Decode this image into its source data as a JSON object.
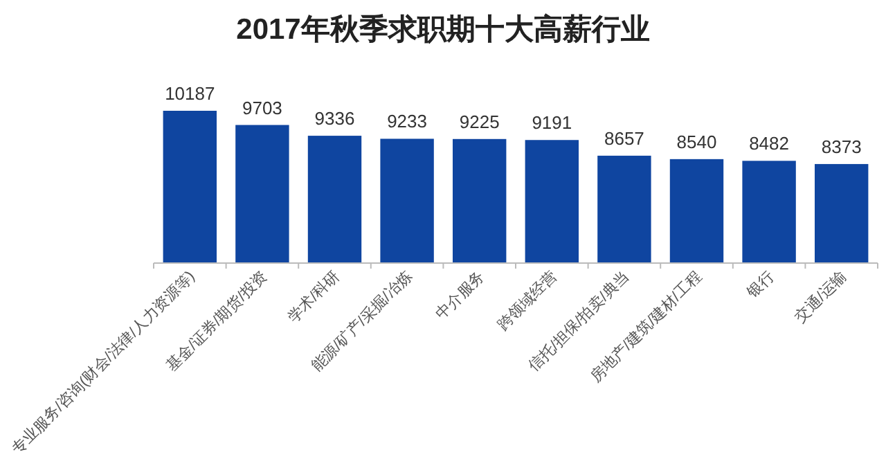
{
  "chart_data": {
    "type": "bar",
    "title": "2017年秋季求职期十大高薪行业",
    "categories": [
      "专业服务/咨询(财会/法律/人力资源等)",
      "基金/证券/期货/投资",
      "学术/科研",
      "能源/矿产/采掘/冶炼",
      "中介服务",
      "跨领域经营",
      "信托/担保/拍卖/典当",
      "房地产/建筑/建材/工程",
      "银行",
      "交通/运输"
    ],
    "values": [
      10187,
      9703,
      9336,
      9233,
      9225,
      9191,
      8657,
      8540,
      8482,
      8373
    ],
    "color": "#0f45a0",
    "ylim": [
      5000,
      10187
    ],
    "tick_labels": "x",
    "data_labels": true
  }
}
